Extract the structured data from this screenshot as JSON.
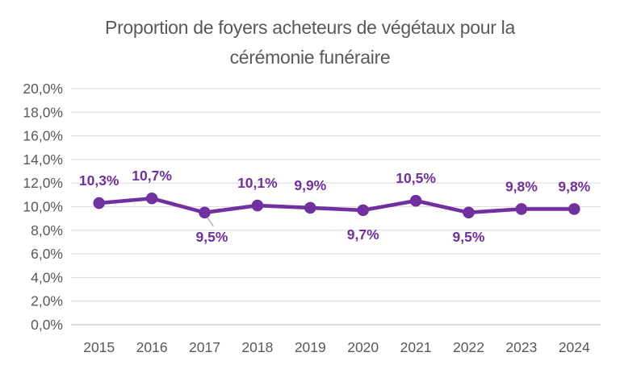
{
  "chart_data": {
    "type": "line",
    "title": "Proportion de foyers acheteurs de végétaux pour la cérémonie funéraire",
    "title_lines": [
      "Proportion de foyers acheteurs de végétaux pour la",
      "cérémonie funéraire"
    ],
    "categories": [
      "2015",
      "2016",
      "2017",
      "2018",
      "2019",
      "2020",
      "2021",
      "2022",
      "2023",
      "2024"
    ],
    "series": [
      {
        "values": [
          10.3,
          10.7,
          9.5,
          10.1,
          9.9,
          9.7,
          10.5,
          9.5,
          9.8,
          9.8
        ],
        "data_labels": [
          "10,3%",
          "10,7%",
          "9,5%",
          "10,1%",
          "9,9%",
          "9,7%",
          "10,5%",
          "9,5%",
          "9,8%",
          "9,8%"
        ],
        "label_side": [
          "above",
          "above",
          "below",
          "above",
          "above",
          "below",
          "above",
          "below",
          "above",
          "above"
        ],
        "leader_line_category": "2017"
      }
    ],
    "xlabel": "",
    "ylabel": "",
    "ylim": [
      0,
      20
    ],
    "ytick_step": 2,
    "ytick_labels": [
      "0,0%",
      "2,0%",
      "4,0%",
      "6,0%",
      "8,0%",
      "10,0%",
      "12,0%",
      "14,0%",
      "16,0%",
      "18,0%",
      "20,0%"
    ],
    "grid": true,
    "legend": "none",
    "colors": {
      "line": "#7030A0",
      "marker": "#7030A0",
      "data_label": "#7030A0",
      "axis_text": "#595959",
      "grid_line": "#DEDEDE",
      "axis_line": "#D0D0D0",
      "leader_line": "#A6A6A6",
      "background": "#FFFFFF",
      "title_text": "#595959"
    }
  }
}
